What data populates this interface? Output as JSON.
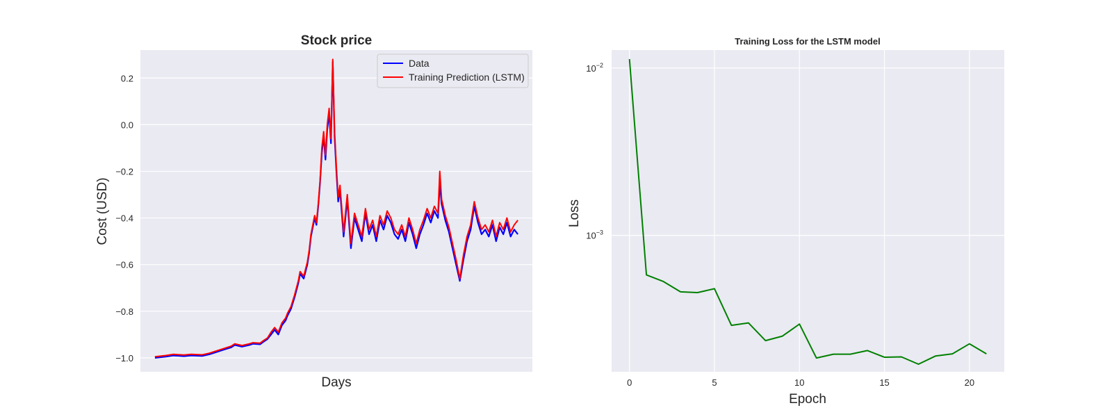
{
  "colors": {
    "plot_bg": "#eaeaf2",
    "grid": "#ffffff",
    "data_line": "#0000ff",
    "prediction_line": "#ff0000",
    "loss_line": "#008000",
    "text": "#262626"
  },
  "chart_data": [
    {
      "type": "line",
      "title": "Stock price",
      "xlabel": "Days",
      "ylabel": "Cost (USD)",
      "ylim": [
        -1.06,
        0.32
      ],
      "xlim": [
        -0.04,
        1.04
      ],
      "grid": true,
      "legend": "top-right",
      "y_ticks": [
        -1.0,
        -0.8,
        -0.6,
        -0.4,
        -0.2,
        0.0,
        0.2
      ],
      "y_tick_labels": [
        "−1.0",
        "−0.8",
        "−0.6",
        "−0.4",
        "−0.2",
        "0.0",
        "0.2"
      ],
      "x_tick_labels": [],
      "series": [
        {
          "name": "Data",
          "x": [
            0.0,
            0.03,
            0.05,
            0.08,
            0.1,
            0.13,
            0.15,
            0.17,
            0.19,
            0.21,
            0.22,
            0.24,
            0.26,
            0.27,
            0.29,
            0.3,
            0.31,
            0.32,
            0.33,
            0.34,
            0.35,
            0.36,
            0.365,
            0.375,
            0.385,
            0.395,
            0.4,
            0.41,
            0.42,
            0.425,
            0.43,
            0.44,
            0.445,
            0.45,
            0.455,
            0.46,
            0.465,
            0.47,
            0.475,
            0.48,
            0.485,
            0.49,
            0.495,
            0.5,
            0.505,
            0.51,
            0.52,
            0.53,
            0.54,
            0.55,
            0.56,
            0.57,
            0.58,
            0.59,
            0.6,
            0.61,
            0.62,
            0.63,
            0.64,
            0.65,
            0.66,
            0.67,
            0.68,
            0.69,
            0.7,
            0.71,
            0.72,
            0.73,
            0.74,
            0.75,
            0.76,
            0.77,
            0.78,
            0.785,
            0.79,
            0.8,
            0.81,
            0.82,
            0.83,
            0.84,
            0.85,
            0.86,
            0.87,
            0.88,
            0.89,
            0.9,
            0.91,
            0.92,
            0.93,
            0.94,
            0.95,
            0.96,
            0.97,
            0.98,
            0.99,
            1.0
          ],
          "y": [
            -1.0,
            -0.995,
            -0.99,
            -0.993,
            -0.99,
            -0.992,
            -0.985,
            -0.975,
            -0.965,
            -0.955,
            -0.945,
            -0.952,
            -0.945,
            -0.94,
            -0.942,
            -0.93,
            -0.92,
            -0.9,
            -0.88,
            -0.9,
            -0.86,
            -0.84,
            -0.82,
            -0.79,
            -0.74,
            -0.68,
            -0.64,
            -0.66,
            -0.6,
            -0.55,
            -0.48,
            -0.4,
            -0.43,
            -0.35,
            -0.25,
            -0.12,
            -0.05,
            -0.15,
            -0.02,
            0.05,
            -0.08,
            0.27,
            -0.05,
            -0.2,
            -0.33,
            -0.28,
            -0.48,
            -0.32,
            -0.53,
            -0.4,
            -0.45,
            -0.5,
            -0.38,
            -0.47,
            -0.43,
            -0.5,
            -0.41,
            -0.45,
            -0.39,
            -0.42,
            -0.47,
            -0.49,
            -0.45,
            -0.5,
            -0.42,
            -0.47,
            -0.53,
            -0.47,
            -0.43,
            -0.38,
            -0.42,
            -0.37,
            -0.4,
            -0.25,
            -0.34,
            -0.41,
            -0.46,
            -0.53,
            -0.6,
            -0.67,
            -0.58,
            -0.5,
            -0.45,
            -0.35,
            -0.42,
            -0.47,
            -0.45,
            -0.48,
            -0.43,
            -0.5,
            -0.44,
            -0.47,
            -0.42,
            -0.48,
            -0.45,
            -0.47
          ],
          "color": "#0000ff"
        },
        {
          "name": "Training Prediction (LSTM)",
          "x": [
            0.0,
            0.03,
            0.05,
            0.08,
            0.1,
            0.13,
            0.15,
            0.17,
            0.19,
            0.21,
            0.22,
            0.24,
            0.26,
            0.27,
            0.29,
            0.3,
            0.31,
            0.32,
            0.33,
            0.34,
            0.35,
            0.36,
            0.365,
            0.375,
            0.385,
            0.395,
            0.4,
            0.41,
            0.42,
            0.425,
            0.43,
            0.44,
            0.445,
            0.45,
            0.455,
            0.46,
            0.465,
            0.47,
            0.475,
            0.48,
            0.485,
            0.49,
            0.495,
            0.5,
            0.505,
            0.51,
            0.52,
            0.53,
            0.54,
            0.55,
            0.56,
            0.57,
            0.58,
            0.59,
            0.6,
            0.61,
            0.62,
            0.63,
            0.64,
            0.65,
            0.66,
            0.67,
            0.68,
            0.69,
            0.7,
            0.71,
            0.72,
            0.73,
            0.74,
            0.75,
            0.76,
            0.77,
            0.78,
            0.785,
            0.79,
            0.8,
            0.81,
            0.82,
            0.83,
            0.84,
            0.85,
            0.86,
            0.87,
            0.88,
            0.89,
            0.9,
            0.91,
            0.92,
            0.93,
            0.94,
            0.95,
            0.96,
            0.97,
            0.98,
            0.99,
            1.0
          ],
          "y": [
            -0.995,
            -0.99,
            -0.985,
            -0.988,
            -0.985,
            -0.987,
            -0.98,
            -0.97,
            -0.96,
            -0.95,
            -0.94,
            -0.947,
            -0.94,
            -0.935,
            -0.937,
            -0.925,
            -0.915,
            -0.89,
            -0.87,
            -0.89,
            -0.85,
            -0.83,
            -0.81,
            -0.78,
            -0.73,
            -0.67,
            -0.63,
            -0.65,
            -0.59,
            -0.54,
            -0.47,
            -0.39,
            -0.42,
            -0.34,
            -0.24,
            -0.1,
            -0.03,
            -0.13,
            0.0,
            0.07,
            -0.06,
            0.28,
            -0.03,
            -0.18,
            -0.31,
            -0.26,
            -0.46,
            -0.3,
            -0.51,
            -0.38,
            -0.43,
            -0.48,
            -0.36,
            -0.45,
            -0.41,
            -0.48,
            -0.39,
            -0.43,
            -0.37,
            -0.4,
            -0.45,
            -0.47,
            -0.43,
            -0.48,
            -0.4,
            -0.45,
            -0.51,
            -0.45,
            -0.41,
            -0.36,
            -0.4,
            -0.35,
            -0.38,
            -0.2,
            -0.32,
            -0.39,
            -0.44,
            -0.51,
            -0.58,
            -0.66,
            -0.56,
            -0.48,
            -0.43,
            -0.33,
            -0.4,
            -0.45,
            -0.43,
            -0.46,
            -0.41,
            -0.48,
            -0.42,
            -0.45,
            -0.4,
            -0.46,
            -0.43,
            -0.41
          ],
          "color": "#ff0000"
        }
      ]
    },
    {
      "type": "line",
      "title": "Training Loss for the LSTM model",
      "xlabel": "Epoch",
      "ylabel": "Loss",
      "yscale": "log",
      "xlim": [
        -1.05,
        22.05
      ],
      "ylim": [
        0.000153,
        0.0128
      ],
      "grid": true,
      "x_ticks": [
        0,
        5,
        10,
        15,
        20
      ],
      "x_tick_labels": [
        "0",
        "5",
        "10",
        "15",
        "20"
      ],
      "y_ticks": [
        0.001,
        0.01
      ],
      "y_tick_labels": [
        {
          "base": "10",
          "exp": "−3"
        },
        {
          "base": "10",
          "exp": "−2"
        }
      ],
      "series": [
        {
          "x": [
            0,
            1,
            2,
            3,
            4,
            5,
            6,
            7,
            8,
            9,
            10,
            11,
            12,
            13,
            14,
            15,
            16,
            17,
            18,
            19,
            20,
            21
          ],
          "y": [
            0.0113,
            0.00058,
            0.00053,
            0.00046,
            0.000455,
            0.00048,
            0.00029,
            0.0003,
            0.000235,
            0.00025,
            0.000295,
            0.000185,
            0.000195,
            0.000195,
            0.000205,
            0.000187,
            0.000188,
            0.00017,
            0.00019,
            0.000196,
            0.000225,
            0.000196
          ],
          "color": "#008000"
        }
      ]
    }
  ]
}
